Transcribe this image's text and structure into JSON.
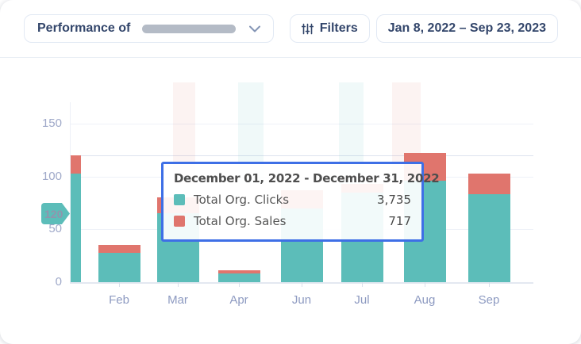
{
  "header": {
    "dropdown": {
      "label": "Performance of"
    },
    "filters_button": {
      "label": "Filters"
    },
    "date_range": {
      "label": "Jan 8, 2022 – Sep 23, 2023"
    }
  },
  "tooltip": {
    "title": "December 01, 2022 - December 31, 2022",
    "rows": [
      {
        "label": "Total Org. Clicks",
        "value": "3,735",
        "color": "#5cbdb9"
      },
      {
        "label": "Total Org. Sales",
        "value": "717",
        "color": "#df756d"
      }
    ]
  },
  "axis_badge": {
    "value": "120"
  },
  "colors": {
    "clicks": "#5cbdb9",
    "sales": "#e0756d",
    "tooltip_border": "#3e6fe6",
    "axis_text": "#9fa9c9",
    "header_text": "#33466b"
  },
  "chart_data": {
    "type": "bar",
    "stacked": true,
    "title": "",
    "xlabel": "",
    "ylabel": "",
    "categories": [
      "",
      "Feb",
      "Mar",
      "Apr",
      "Jun",
      "Jul",
      "Aug",
      "Sep"
    ],
    "series": [
      {
        "name": "Total Org. Clicks",
        "color": "#5cbdb9",
        "values": [
          103,
          28,
          65,
          8,
          70,
          85,
          96,
          83
        ]
      },
      {
        "name": "Total Org. Sales",
        "color": "#e0756d",
        "values": [
          17,
          7,
          15,
          3,
          17,
          8,
          26,
          20
        ]
      }
    ],
    "totals": [
      120,
      35,
      80,
      11,
      87,
      93,
      122,
      103
    ],
    "y_ticks": [
      0,
      50,
      100,
      150
    ],
    "ylim": [
      0,
      160
    ],
    "grid": true,
    "legend_position": "tooltip",
    "hover_line_value": 120,
    "hovered_period": "December 01, 2022 - December 31, 2022"
  }
}
